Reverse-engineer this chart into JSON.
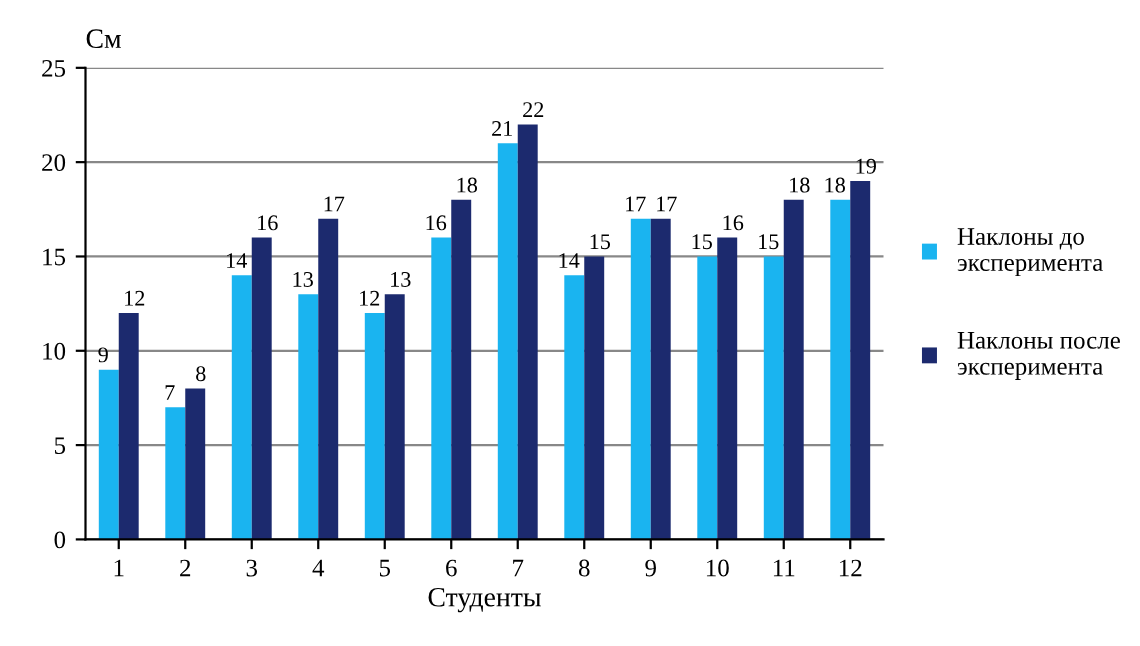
{
  "chart_data": {
    "type": "bar",
    "ylabel": "См",
    "xlabel": "Студенты",
    "categories": [
      "1",
      "2",
      "3",
      "4",
      "5",
      "6",
      "7",
      "8",
      "9",
      "10",
      "11",
      "12"
    ],
    "series": [
      {
        "name": "Наклоны до эксперимента",
        "color": "#1ab4f0",
        "values": [
          9,
          7,
          14,
          13,
          12,
          16,
          21,
          14,
          17,
          15,
          15,
          18
        ]
      },
      {
        "name": "Наклоны после эксперимента",
        "color": "#1c2a6e",
        "values": [
          12,
          8,
          16,
          17,
          13,
          18,
          22,
          15,
          17,
          16,
          18,
          19
        ]
      }
    ],
    "ylim": [
      0,
      25
    ],
    "yticks": [
      0,
      5,
      10,
      15,
      20,
      25
    ],
    "grid": "y",
    "legend": "right",
    "data_labels": true
  }
}
